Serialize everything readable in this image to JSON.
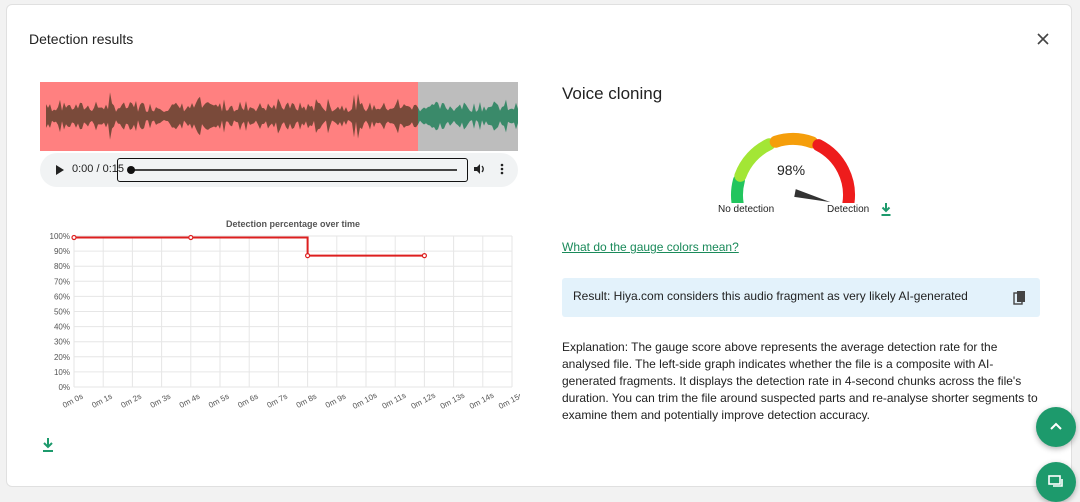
{
  "dialog": {
    "title": "Detection results",
    "close_icon": "close-icon"
  },
  "player": {
    "time": "0:00 / 0:15",
    "progress": 0,
    "icons": [
      "play-icon",
      "volume-icon",
      "more-vert-icon"
    ]
  },
  "waveform": {
    "flagged_fraction": 0.79,
    "flagged_color": "#ff8080",
    "flagged_wave_color": "#7a4a3a",
    "clean_color": "#bdbdbd",
    "clean_wave_color": "#3a8a6a"
  },
  "chart_data": {
    "type": "line",
    "title": "Detection percentage over time",
    "x_ticks": [
      "0m 0s",
      "0m 1s",
      "0m 2s",
      "0m 3s",
      "0m 4s",
      "0m 5s",
      "0m 6s",
      "0m 7s",
      "0m 8s",
      "0m 9s",
      "0m 10s",
      "0m 11s",
      "0m 12s",
      "0m 13s",
      "0m 14s",
      "0m 15s"
    ],
    "y_ticks": [
      "0%",
      "10%",
      "20%",
      "30%",
      "40%",
      "50%",
      "60%",
      "70%",
      "80%",
      "90%",
      "100%"
    ],
    "ylim": [
      0,
      100
    ],
    "xlim": [
      0,
      15
    ],
    "step": true,
    "x": [
      0,
      4,
      8,
      8,
      12
    ],
    "y": [
      99,
      99,
      99,
      87,
      87
    ],
    "markers_x": [
      0,
      4,
      8,
      12
    ],
    "markers_y": [
      99,
      99,
      87,
      87
    ],
    "color": "#dd1f1f",
    "grid": true
  },
  "download_icon": "download-icon",
  "voice_cloning": {
    "title": "Voice cloning",
    "score": "98%",
    "score_value": 98,
    "label_low": "No detection",
    "label_high": "Detection",
    "gauge_colors": [
      "#22c55e",
      "#a3e635",
      "#f59e0b",
      "#ee1c1c"
    ],
    "link_text": "What do the gauge colors mean?",
    "result": "Result: Hiya.com considers this audio fragment as very likely AI-generated",
    "copy_icon": "copy-icon",
    "explanation": "Explanation: The gauge score above represents the average detection rate for the analysed file. The left-side graph indicates whether the file is a composite with AI-generated fragments. It displays the detection rate in 4-second chunks across the file's duration. You can trim the file around suspected parts and re-analyse shorter segments to examine them and potentially improve detection accuracy."
  },
  "fabs": [
    "chevron-up-icon",
    "chat-icon"
  ]
}
